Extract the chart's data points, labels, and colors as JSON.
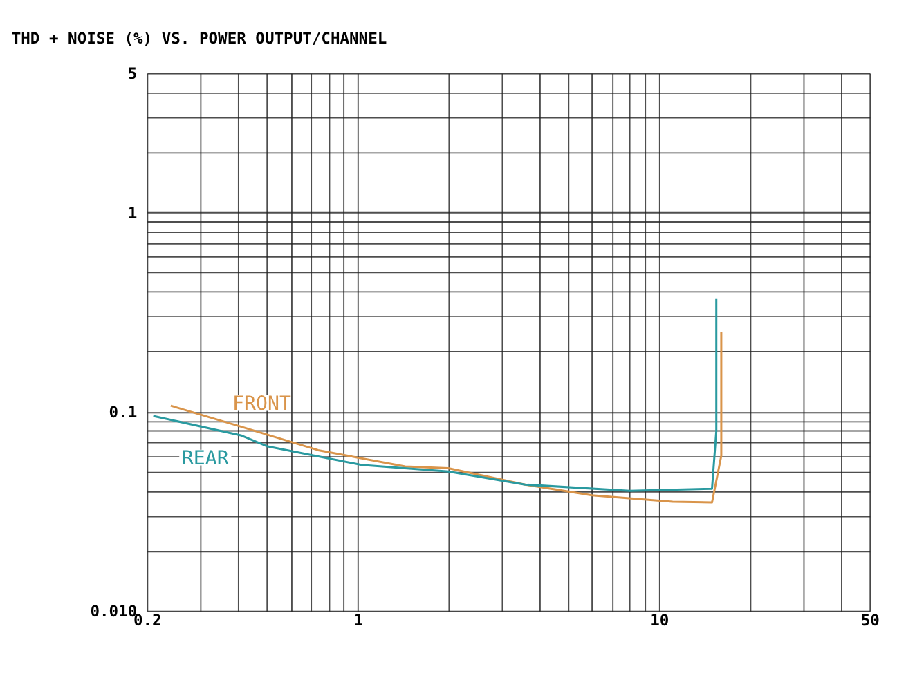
{
  "chart_data": {
    "type": "line",
    "title": "THD + NOISE (%) VS. POWER OUTPUT/CHANNEL",
    "log": "xy",
    "grid": true,
    "xlim": [
      0.2,
      50
    ],
    "ylim": [
      0.01,
      5
    ],
    "xticks": [
      0.2,
      {
        "value": 0.3,
        "label": null
      },
      {
        "value": 0.4,
        "label": null
      },
      {
        "value": 0.5,
        "label": null
      },
      {
        "value": 0.6,
        "label": null
      },
      {
        "value": 0.7,
        "label": null
      },
      {
        "value": 0.8,
        "label": null
      },
      {
        "value": 0.9,
        "label": null
      },
      1,
      {
        "value": 2,
        "label": null
      },
      {
        "value": 3,
        "label": null
      },
      {
        "value": 4,
        "label": null
      },
      {
        "value": 5,
        "label": null
      },
      {
        "value": 6,
        "label": null
      },
      {
        "value": 7,
        "label": null
      },
      {
        "value": 8,
        "label": null
      },
      {
        "value": 9,
        "label": null
      },
      10,
      {
        "value": 20,
        "label": null
      },
      {
        "value": 30,
        "label": null
      },
      {
        "value": 40,
        "label": null
      },
      50
    ],
    "yticks": [
      {
        "value": 0.01,
        "label": "0.010"
      },
      {
        "value": 0.02,
        "label": null
      },
      {
        "value": 0.03,
        "label": null
      },
      {
        "value": 0.04,
        "label": null
      },
      {
        "value": 0.05,
        "label": null
      },
      {
        "value": 0.06,
        "label": null
      },
      {
        "value": 0.07,
        "label": null
      },
      {
        "value": 0.08,
        "label": null
      },
      {
        "value": 0.09,
        "label": null
      },
      0.1,
      {
        "value": 0.2,
        "label": null
      },
      {
        "value": 0.3,
        "label": null
      },
      {
        "value": 0.4,
        "label": null
      },
      {
        "value": 0.5,
        "label": null
      },
      {
        "value": 0.6,
        "label": null
      },
      {
        "value": 0.7,
        "label": null
      },
      {
        "value": 0.8,
        "label": null
      },
      {
        "value": 0.9,
        "label": null
      },
      1,
      {
        "value": 2,
        "label": null
      },
      {
        "value": 3,
        "label": null
      },
      {
        "value": 4,
        "label": null
      },
      5
    ],
    "series": [
      {
        "name": "FRONT",
        "color": "#d9944a",
        "x": [
          0.24,
          0.41,
          0.74,
          1.44,
          2.0,
          3.6,
          6.0,
          11.1,
          15.0,
          16.1,
          16.1
        ],
        "values": [
          0.107,
          0.084,
          0.064,
          0.053,
          0.052,
          0.043,
          0.038,
          0.0353,
          0.035,
          0.06,
          0.25
        ]
      },
      {
        "name": "REAR",
        "color": "#2a9aa0",
        "x": [
          0.21,
          0.41,
          0.5,
          1.03,
          2.0,
          3.6,
          8.0,
          15.0,
          15.5,
          15.5
        ],
        "values": [
          0.095,
          0.076,
          0.067,
          0.054,
          0.05,
          0.043,
          0.04,
          0.041,
          0.08,
          0.37
        ]
      }
    ]
  }
}
